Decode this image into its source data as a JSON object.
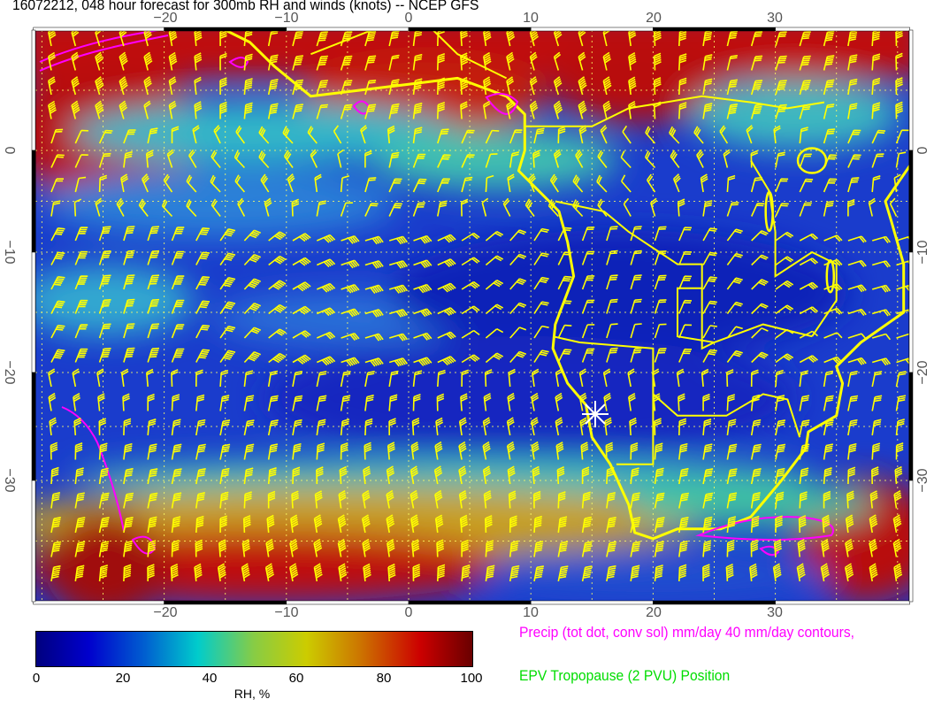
{
  "title": "16072212, 048 hour forecast for 300mb RH and winds (knots) -- NCEP GFS",
  "axes": {
    "lon_ticks": [
      "−20",
      "−10",
      "0",
      "10",
      "20",
      "30"
    ],
    "lat_ticks": [
      "0",
      "−10",
      "−20",
      "−30"
    ]
  },
  "colorbar": {
    "ticks": [
      "0",
      "20",
      "40",
      "60",
      "80",
      "100"
    ],
    "label": "RH, %",
    "range": [
      0,
      100
    ]
  },
  "legend": {
    "precip": "Precip (tot dot, conv sol) mm/day 40 mm/day contours,",
    "epv": "EPV Tropopause (2 PVU) Position"
  },
  "colors": {
    "coastline": "#ffff00",
    "precip": "#ff00ff",
    "epv": "#00dd00",
    "barbs": "#ffff00",
    "marker": "#ffffff"
  }
}
